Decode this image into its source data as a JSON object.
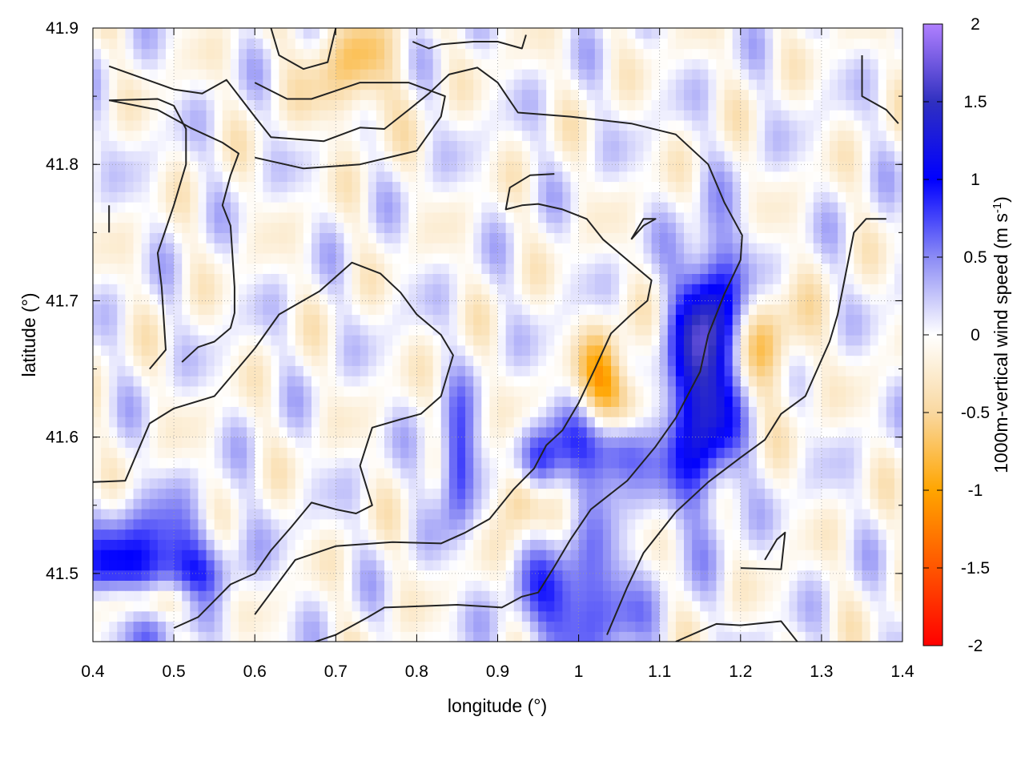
{
  "chart_data": {
    "type": "heatmap",
    "title": "",
    "xlabel": "longitude (°)",
    "ylabel": "latitude (°)",
    "colorbar_label": "1000m-vertical wind speed (m s",
    "colorbar_label_sup": "-1",
    "colorbar_label_end": ")",
    "xlim": [
      0.4,
      1.4
    ],
    "ylim": [
      41.45,
      41.9
    ],
    "xticks": [
      "0.4",
      "0.5",
      "0.6",
      "0.7",
      "0.8",
      "0.9",
      "1",
      "1.1",
      "1.2",
      "1.3",
      "1.4"
    ],
    "yticks": [
      "41.5",
      "41.6",
      "41.7",
      "41.8",
      "41.9"
    ],
    "ytick_values": [
      41.5,
      41.6,
      41.7,
      41.8,
      41.9
    ],
    "colorbar_range": [
      -2,
      2
    ],
    "colorbar_ticks": [
      "2",
      "1.5",
      "1",
      "0.5",
      "0",
      "-0.5",
      "-1",
      "-1.5",
      "-2"
    ],
    "colorbar_tick_values": [
      2,
      1.5,
      1,
      0.5,
      0,
      -0.5,
      -1,
      -1.5,
      -2
    ],
    "colormap": [
      {
        "v": -2,
        "color": "#ff0000"
      },
      {
        "v": -1.5,
        "color": "#ff5500"
      },
      {
        "v": -1,
        "color": "#ffa500"
      },
      {
        "v": -0.5,
        "color": "#f9d8a0"
      },
      {
        "v": 0,
        "color": "#ffffff"
      },
      {
        "v": 0.5,
        "color": "#8b8bf5"
      },
      {
        "v": 1,
        "color": "#0000ff"
      },
      {
        "v": 1.5,
        "color": "#3030c0"
      },
      {
        "v": 2,
        "color": "#b080ff"
      }
    ],
    "grid": true,
    "contour_color": "#222222",
    "features": [
      {
        "lon": 1.04,
        "lat": 41.6,
        "amp": 1.8,
        "sx": 0.03,
        "sy": 0.025
      },
      {
        "lon": 1.15,
        "lat": 41.62,
        "amp": 1.3,
        "sx": 0.03,
        "sy": 0.05
      },
      {
        "lon": 1.17,
        "lat": 41.69,
        "amp": 1.2,
        "sx": 0.03,
        "sy": 0.04
      },
      {
        "lon": 0.85,
        "lat": 41.58,
        "amp": 1.0,
        "sx": 0.015,
        "sy": 0.03
      },
      {
        "lon": 0.95,
        "lat": 41.58,
        "amp": 1.1,
        "sx": 0.02,
        "sy": 0.02
      },
      {
        "lon": 0.47,
        "lat": 41.5,
        "amp": 1.2,
        "sx": 0.06,
        "sy": 0.03
      },
      {
        "lon": 1.0,
        "lat": 41.48,
        "amp": 0.9,
        "sx": 0.05,
        "sy": 0.03
      },
      {
        "lon": 1.03,
        "lat": 41.63,
        "amp": -1.3,
        "sx": 0.02,
        "sy": 0.03
      },
      {
        "lon": 1.06,
        "lat": 41.62,
        "amp": -1.2,
        "sx": 0.02,
        "sy": 0.02
      },
      {
        "lon": 0.93,
        "lat": 41.56,
        "amp": -0.9,
        "sx": 0.02,
        "sy": 0.02
      },
      {
        "lon": 0.47,
        "lat": 41.48,
        "amp": -1.0,
        "sx": 0.05,
        "sy": 0.012
      },
      {
        "lon": 1.22,
        "lat": 41.67,
        "amp": -0.7,
        "sx": 0.04,
        "sy": 0.03
      },
      {
        "lon": 0.72,
        "lat": 41.87,
        "amp": -0.6,
        "sx": 0.04,
        "sy": 0.03
      }
    ],
    "contours": [
      [
        [
          0.42,
          41.872
        ],
        [
          0.5,
          41.855
        ],
        [
          0.535,
          41.852
        ],
        [
          0.565,
          41.862
        ],
        [
          0.6,
          41.835
        ],
        [
          0.62,
          41.82
        ],
        [
          0.685,
          41.817
        ],
        [
          0.73,
          41.827
        ],
        [
          0.76,
          41.826
        ],
        [
          0.79,
          41.84
        ],
        [
          0.815,
          41.852
        ],
        [
          0.84,
          41.866
        ],
        [
          0.875,
          41.871
        ],
        [
          0.9,
          41.86
        ],
        [
          0.925,
          41.838
        ],
        [
          0.99,
          41.835
        ],
        [
          1.065,
          41.83
        ],
        [
          1.12,
          41.822
        ],
        [
          1.16,
          41.8
        ],
        [
          1.18,
          41.772
        ],
        [
          1.202,
          41.748
        ],
        [
          1.2,
          41.73
        ],
        [
          1.18,
          41.705
        ],
        [
          1.16,
          41.675
        ],
        [
          1.15,
          41.648
        ],
        [
          1.12,
          41.614
        ],
        [
          1.095,
          41.593
        ],
        [
          1.06,
          41.568
        ],
        [
          1.015,
          41.547
        ],
        [
          0.99,
          41.525
        ],
        [
          0.97,
          41.505
        ],
        [
          0.95,
          41.486
        ],
        [
          0.93,
          41.483
        ],
        [
          0.905,
          41.475
        ],
        [
          0.85,
          41.477
        ],
        [
          0.76,
          41.475
        ],
        [
          0.74,
          41.468
        ],
        [
          0.7,
          41.455
        ],
        [
          0.66,
          41.447
        ]
      ],
      [
        [
          0.42,
          41.847
        ],
        [
          0.48,
          41.84
        ],
        [
          0.52,
          41.827
        ],
        [
          0.56,
          41.816
        ],
        [
          0.58,
          41.808
        ],
        [
          0.57,
          41.792
        ],
        [
          0.56,
          41.77
        ],
        [
          0.57,
          41.755
        ],
        [
          0.575,
          41.71
        ],
        [
          0.575,
          41.691
        ],
        [
          0.57,
          41.68
        ],
        [
          0.55,
          41.67
        ],
        [
          0.53,
          41.666
        ],
        [
          0.51,
          41.655
        ]
      ],
      [
        [
          0.47,
          41.65
        ],
        [
          0.49,
          41.664
        ],
        [
          0.485,
          41.71
        ],
        [
          0.48,
          41.735
        ],
        [
          0.5,
          41.77
        ],
        [
          0.515,
          41.8
        ],
        [
          0.515,
          41.826
        ],
        [
          0.5,
          41.843
        ],
        [
          0.48,
          41.848
        ],
        [
          0.42,
          41.847
        ]
      ],
      [
        [
          0.6,
          41.805
        ],
        [
          0.66,
          41.797
        ],
        [
          0.73,
          41.8
        ],
        [
          0.8,
          41.81
        ],
        [
          0.83,
          41.835
        ],
        [
          0.835,
          41.85
        ],
        [
          0.79,
          41.86
        ],
        [
          0.73,
          41.86
        ],
        [
          0.7,
          41.854
        ],
        [
          0.67,
          41.848
        ],
        [
          0.64,
          41.848
        ],
        [
          0.6,
          41.86
        ]
      ],
      [
        [
          0.4,
          41.567
        ],
        [
          0.44,
          41.568
        ],
        [
          0.47,
          41.61
        ],
        [
          0.5,
          41.621
        ],
        [
          0.55,
          41.63
        ],
        [
          0.6,
          41.665
        ],
        [
          0.63,
          41.69
        ],
        [
          0.68,
          41.707
        ],
        [
          0.72,
          41.728
        ],
        [
          0.755,
          41.72
        ],
        [
          0.78,
          41.706
        ],
        [
          0.8,
          41.69
        ],
        [
          0.83,
          41.675
        ],
        [
          0.845,
          41.66
        ],
        [
          0.83,
          41.63
        ],
        [
          0.805,
          41.617
        ],
        [
          0.78,
          41.613
        ],
        [
          0.745,
          41.607
        ],
        [
          0.73,
          41.579
        ],
        [
          0.745,
          41.55
        ],
        [
          0.725,
          41.544
        ],
        [
          0.7,
          41.547
        ],
        [
          0.67,
          41.552
        ],
        [
          0.645,
          41.534
        ],
        [
          0.62,
          41.517
        ],
        [
          0.6,
          41.5
        ],
        [
          0.57,
          41.492
        ],
        [
          0.53,
          41.468
        ],
        [
          0.5,
          41.46
        ]
      ],
      [
        [
          0.6,
          41.47
        ],
        [
          0.65,
          41.51
        ],
        [
          0.7,
          41.52
        ],
        [
          0.77,
          41.523
        ],
        [
          0.83,
          41.522
        ],
        [
          0.86,
          41.53
        ],
        [
          0.89,
          41.54
        ],
        [
          0.92,
          41.562
        ],
        [
          0.945,
          41.577
        ],
        [
          0.96,
          41.594
        ],
        [
          0.98,
          41.605
        ],
        [
          1.0,
          41.625
        ],
        [
          1.02,
          41.65
        ],
        [
          1.04,
          41.676
        ],
        [
          1.065,
          41.69
        ],
        [
          1.085,
          41.7
        ],
        [
          1.09,
          41.715
        ],
        [
          1.06,
          41.73
        ],
        [
          1.03,
          41.745
        ],
        [
          1.01,
          41.76
        ],
        [
          0.98,
          41.767
        ],
        [
          0.95,
          41.771
        ],
        [
          0.93,
          41.77
        ],
        [
          0.91,
          41.767
        ],
        [
          0.915,
          41.783
        ],
        [
          0.94,
          41.792
        ],
        [
          0.97,
          41.793
        ]
      ],
      [
        [
          1.065,
          41.745
        ],
        [
          1.08,
          41.76
        ],
        [
          1.095,
          41.76
        ],
        [
          1.08,
          41.755
        ],
        [
          1.065,
          41.745
        ]
      ],
      [
        [
          1.035,
          41.455
        ],
        [
          1.06,
          41.49
        ],
        [
          1.08,
          41.515
        ],
        [
          1.12,
          41.545
        ],
        [
          1.16,
          41.567
        ],
        [
          1.2,
          41.585
        ],
        [
          1.23,
          41.598
        ],
        [
          1.25,
          41.617
        ],
        [
          1.28,
          41.63
        ],
        [
          1.31,
          41.67
        ],
        [
          1.32,
          41.69
        ],
        [
          1.33,
          41.72
        ],
        [
          1.34,
          41.75
        ],
        [
          1.355,
          41.76
        ],
        [
          1.38,
          41.76
        ]
      ],
      [
        [
          1.2,
          41.504
        ],
        [
          1.25,
          41.503
        ],
        [
          1.255,
          41.53
        ],
        [
          1.245,
          41.525
        ],
        [
          1.23,
          41.51
        ]
      ],
      [
        [
          1.12,
          41.45
        ],
        [
          1.17,
          41.463
        ],
        [
          1.2,
          41.462
        ],
        [
          1.25,
          41.465
        ],
        [
          1.27,
          41.45
        ]
      ],
      [
        [
          1.35,
          41.88
        ],
        [
          1.35,
          41.85
        ],
        [
          1.38,
          41.84
        ],
        [
          1.395,
          41.83
        ]
      ],
      [
        [
          0.62,
          41.9
        ],
        [
          0.63,
          41.88
        ],
        [
          0.66,
          41.87
        ],
        [
          0.69,
          41.875
        ],
        [
          0.7,
          41.9
        ]
      ],
      [
        [
          0.795,
          41.89
        ],
        [
          0.815,
          41.885
        ],
        [
          0.83,
          41.888
        ],
        [
          0.87,
          41.89
        ],
        [
          0.9,
          41.89
        ],
        [
          0.93,
          41.885
        ],
        [
          0.935,
          41.895
        ]
      ],
      [
        [
          0.42,
          41.77
        ],
        [
          0.42,
          41.75
        ]
      ]
    ]
  }
}
